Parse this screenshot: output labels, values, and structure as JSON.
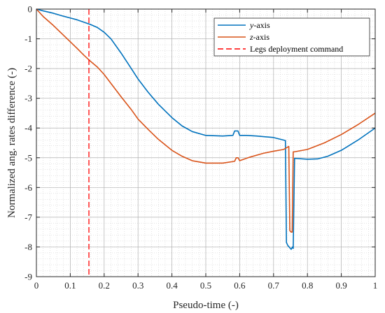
{
  "chart_data": {
    "type": "line",
    "xlabel": "Pseudo-time (-)",
    "ylabel": "Normalized ang. rates difference (-)",
    "xlim": [
      0,
      1
    ],
    "ylim": [
      -9,
      0
    ],
    "xticks": [
      "0",
      "0.1",
      "0.2",
      "0.3",
      "0.4",
      "0.5",
      "0.6",
      "0.7",
      "0.8",
      "0.9",
      "1"
    ],
    "yticks": [
      "0",
      "-1",
      "-2",
      "-3",
      "-4",
      "-5",
      "-6",
      "-7",
      "-8",
      "-9"
    ],
    "grid": true,
    "minor_grid": true,
    "legend_position": "top-right",
    "series": [
      {
        "name": "y-axis",
        "color": "#0072BD",
        "x": [
          0,
          0.02,
          0.05,
          0.08,
          0.1,
          0.12,
          0.14,
          0.16,
          0.18,
          0.2,
          0.22,
          0.25,
          0.28,
          0.3,
          0.33,
          0.36,
          0.4,
          0.43,
          0.46,
          0.5,
          0.55,
          0.58,
          0.585,
          0.595,
          0.6,
          0.62,
          0.65,
          0.7,
          0.735,
          0.738,
          0.742,
          0.752,
          0.756,
          0.758,
          0.762,
          0.8,
          0.83,
          0.86,
          0.9,
          0.95,
          1.0
        ],
        "y": [
          0,
          -0.06,
          -0.14,
          -0.24,
          -0.3,
          -0.36,
          -0.44,
          -0.52,
          -0.62,
          -0.78,
          -1.0,
          -1.48,
          -2.0,
          -2.35,
          -2.8,
          -3.2,
          -3.65,
          -3.93,
          -4.12,
          -4.25,
          -4.27,
          -4.25,
          -4.1,
          -4.1,
          -4.25,
          -4.25,
          -4.27,
          -4.32,
          -4.42,
          -7.85,
          -7.95,
          -8.08,
          -8.0,
          -8.05,
          -5.02,
          -5.05,
          -5.04,
          -4.95,
          -4.75,
          -4.4,
          -4.0
        ]
      },
      {
        "name": "z-axis",
        "color": "#D95319",
        "x": [
          0,
          0.02,
          0.05,
          0.08,
          0.1,
          0.12,
          0.14,
          0.16,
          0.18,
          0.2,
          0.22,
          0.25,
          0.28,
          0.3,
          0.33,
          0.36,
          0.4,
          0.43,
          0.46,
          0.5,
          0.55,
          0.585,
          0.59,
          0.595,
          0.6,
          0.63,
          0.67,
          0.7,
          0.73,
          0.745,
          0.748,
          0.752,
          0.755,
          0.758,
          0.762,
          0.8,
          0.85,
          0.9,
          0.95,
          1.0
        ],
        "y": [
          0,
          -0.25,
          -0.55,
          -0.88,
          -1.1,
          -1.32,
          -1.55,
          -1.76,
          -1.95,
          -2.2,
          -2.5,
          -2.95,
          -3.38,
          -3.7,
          -4.05,
          -4.38,
          -4.75,
          -4.95,
          -5.1,
          -5.18,
          -5.18,
          -5.12,
          -5.0,
          -5.0,
          -5.1,
          -4.98,
          -4.85,
          -4.78,
          -4.72,
          -4.62,
          -7.45,
          -7.5,
          -7.5,
          -4.8,
          -4.8,
          -4.72,
          -4.5,
          -4.22,
          -3.88,
          -3.5
        ]
      },
      {
        "name": "Legs deployment command",
        "color": "#FF0000",
        "style": "dashed",
        "x": [
          0.155,
          0.155
        ],
        "y": [
          0,
          -9
        ]
      }
    ],
    "legend": [
      {
        "prefix": "",
        "italic": "y",
        "suffix": "-axis"
      },
      {
        "prefix": "",
        "italic": "z",
        "suffix": "-axis"
      },
      {
        "prefix": "Legs deployment command",
        "italic": "",
        "suffix": ""
      }
    ]
  }
}
